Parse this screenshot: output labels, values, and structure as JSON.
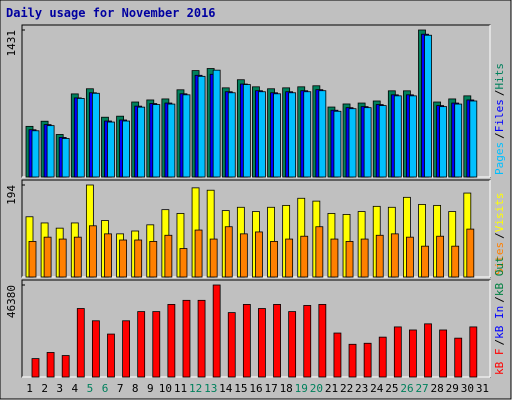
{
  "chart_data": [
    {
      "type": "bar",
      "title": "Daily usage for November 2016",
      "legend_separator": "/",
      "ylim": [
        0,
        1431
      ],
      "yticks": [
        1431
      ],
      "series": [
        {
          "name": "Hits",
          "color": "#00805c",
          "values": [
            493,
            543,
            414,
            809,
            859,
            582,
            592,
            730,
            750,
            760,
            849,
            1036,
            1056,
            868,
            947,
            878,
            859,
            868,
            878,
            888,
            681,
            711,
            720,
            740,
            839,
            839,
            1431,
            730,
            760,
            790,
            null
          ]
        },
        {
          "name": "Files",
          "color": "#0000ff",
          "values": [
            460,
            510,
            385,
            770,
            820,
            545,
            555,
            690,
            715,
            720,
            810,
            990,
            1000,
            830,
            905,
            840,
            820,
            830,
            840,
            850,
            650,
            675,
            685,
            705,
            800,
            800,
            1390,
            695,
            720,
            750,
            null
          ]
        },
        {
          "name": "Pages",
          "color": "#00c0ff",
          "values": [
            450,
            500,
            375,
            765,
            815,
            535,
            545,
            680,
            705,
            710,
            800,
            980,
            1040,
            820,
            900,
            830,
            810,
            820,
            830,
            840,
            640,
            665,
            675,
            695,
            790,
            790,
            1380,
            685,
            710,
            740,
            null
          ]
        }
      ]
    },
    {
      "type": "bar",
      "legend_separator": "/",
      "ylim": [
        0,
        194
      ],
      "yticks": [
        194
      ],
      "series": [
        {
          "name": "Visits",
          "color": "#ffff00",
          "values": [
            127,
            114,
            103,
            114,
            194,
            119,
            91,
            97,
            110,
            142,
            134,
            188,
            183,
            140,
            147,
            138,
            147,
            151,
            166,
            160,
            134,
            132,
            138,
            149,
            147,
            168,
            153,
            151,
            138,
            177,
            null
          ]
        },
        {
          "name": "Sites",
          "color": "#ff8000",
          "values": [
            75,
            84,
            80,
            84,
            108,
            91,
            78,
            78,
            75,
            88,
            60,
            99,
            80,
            106,
            91,
            95,
            75,
            80,
            86,
            106,
            80,
            75,
            80,
            88,
            91,
            84,
            65,
            86,
            65,
            101,
            null
          ]
        }
      ]
    },
    {
      "type": "bar",
      "legend_separator": "/",
      "ylim": [
        0,
        46380
      ],
      "yticks": [
        46380
      ],
      "categories": [
        "1",
        "2",
        "3",
        "4",
        "5",
        "6",
        "7",
        "8",
        "9",
        "10",
        "11",
        "12",
        "13",
        "14",
        "15",
        "16",
        "17",
        "18",
        "19",
        "20",
        "21",
        "22",
        "23",
        "24",
        "25",
        "26",
        "27",
        "28",
        "29",
        "30",
        "31"
      ],
      "category_colors": [
        "#000000",
        "#000000",
        "#000000",
        "#000000",
        "#00805c",
        "#00805c",
        "#000000",
        "#000000",
        "#000000",
        "#000000",
        "#000000",
        "#00805c",
        "#00805c",
        "#000000",
        "#000000",
        "#000000",
        "#000000",
        "#000000",
        "#00805c",
        "#00805c",
        "#000000",
        "#000000",
        "#000000",
        "#000000",
        "#000000",
        "#00805c",
        "#00805c",
        "#000000",
        "#000000",
        "#000000",
        "#000000"
      ],
      "series": [
        {
          "name": "kB Out",
          "color": "#008040",
          "values": [
            null,
            null,
            null,
            null,
            null,
            null,
            null,
            null,
            null,
            null,
            null,
            null,
            null,
            null,
            null,
            null,
            null,
            null,
            null,
            null,
            null,
            null,
            null,
            null,
            null,
            null,
            null,
            null,
            null,
            null,
            null
          ]
        },
        {
          "name": "kB In",
          "color": "#0000ff",
          "values": [
            null,
            null,
            null,
            null,
            null,
            null,
            null,
            null,
            null,
            null,
            null,
            null,
            null,
            null,
            null,
            null,
            null,
            null,
            null,
            null,
            null,
            null,
            null,
            null,
            null,
            null,
            null,
            null,
            null,
            null,
            null
          ]
        },
        {
          "name": "kB F",
          "color": "#ff0000",
          "values": [
            9276,
            12368,
            10822,
            34527,
            28344,
            21644,
            28344,
            32982,
            32982,
            36589,
            38650,
            38650,
            46380,
            32467,
            36589,
            34527,
            36589,
            32982,
            36073,
            36589,
            22160,
            16491,
            17006,
            20098,
            25251,
            23706,
            26798,
            23706,
            19583,
            25251,
            null
          ]
        }
      ]
    }
  ]
}
